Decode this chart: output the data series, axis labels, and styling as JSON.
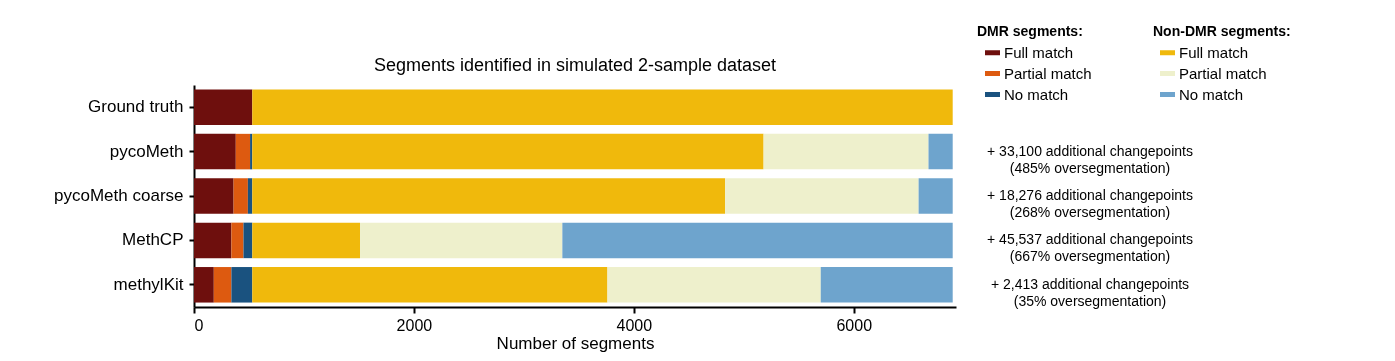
{
  "chart_data": {
    "type": "bar",
    "orientation": "horizontal",
    "stacked": true,
    "title": "Segments identified in simulated 2-sample dataset",
    "xlabel": "Number of segments",
    "categories": [
      "Ground truth",
      "pycoMeth",
      "pycoMeth coarse",
      "MethCP",
      "methylKit"
    ],
    "series": [
      {
        "name": "Full match",
        "color": "#6e0f0d",
        "values": [
          530,
          380,
          360,
          340,
          180
        ]
      },
      {
        "name": "Partial match",
        "color": "#dd5a10",
        "values": [
          null,
          130,
          130,
          110,
          160
        ]
      },
      {
        "name": "No match",
        "color": "#1a527f",
        "values": [
          null,
          20,
          40,
          80,
          190
        ]
      },
      {
        "name": "Full match",
        "color": "#f0b90c",
        "values": [
          6370,
          4650,
          4300,
          980,
          3230
        ]
      },
      {
        "name": "Partial match",
        "color": "#eef0cc",
        "values": [
          null,
          1500,
          1760,
          1840,
          1940
        ]
      },
      {
        "name": "No match",
        "color": "#6ea4cd",
        "values": [
          null,
          220,
          310,
          3550,
          1200
        ]
      }
    ],
    "xlim": [
      0,
      6930
    ],
    "xticks": [
      0,
      2000,
      4000,
      6000
    ],
    "grid": false,
    "legend": "top right",
    "annotations": [
      "DMR segments:",
      "Non-DMR segments:",
      "+ 33,100 additional changepoints\n(485% oversegmentation)",
      "+ 18,276 additional changepoints\n(268% oversegmentation)",
      "+ 45,537 additional changepoints\n(667% oversegmentation)",
      "+ 2,413 additional changepoints\n(35% oversegmentation)"
    ]
  }
}
